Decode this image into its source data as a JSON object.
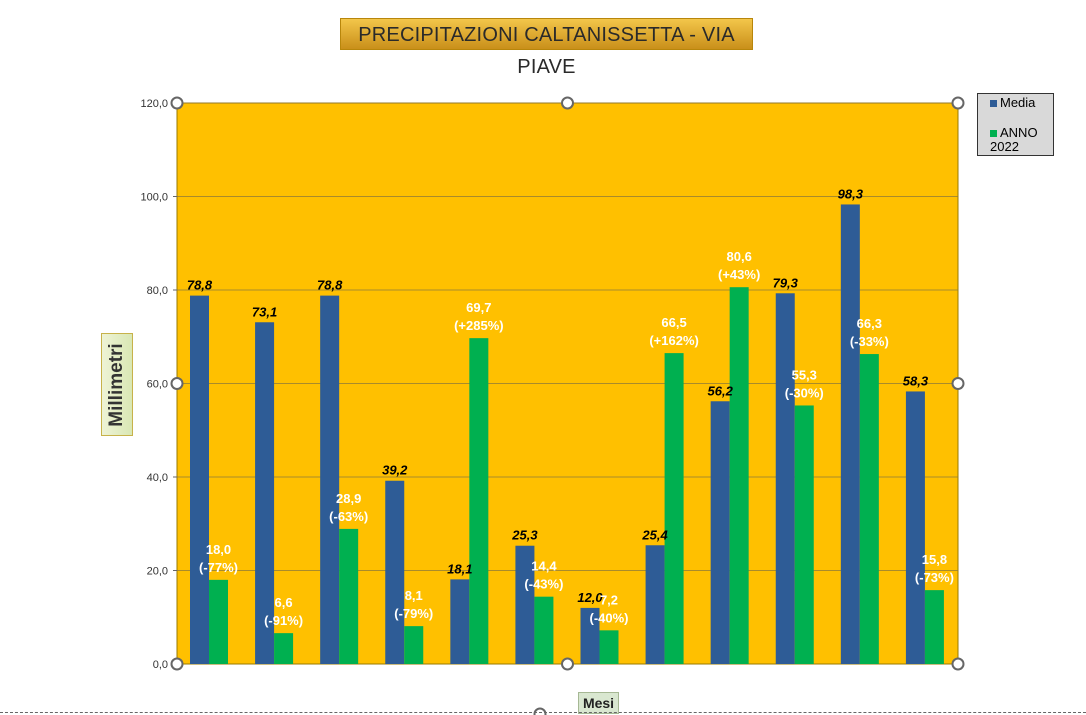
{
  "chart_data": {
    "type": "bar",
    "title": "PRECIPITAZIONI CALTANISSETTA - VIA PIAVE",
    "ylabel": "Millimetri",
    "xlabel": "Mesi",
    "ylim": [
      0,
      120
    ],
    "yticks": [
      "0,0",
      "20,0",
      "40,0",
      "60,0",
      "80,0",
      "100,0",
      "120,0"
    ],
    "grid": true,
    "legend_position": "top-right",
    "series": [
      {
        "name": "Media",
        "color": "#2e5c96",
        "values": [
          78.8,
          73.1,
          78.8,
          39.2,
          18.1,
          25.3,
          12.0,
          25.4,
          56.2,
          79.3,
          98.3,
          58.3
        ],
        "labels": [
          "78,8",
          "73,1",
          "78,8",
          "39,2",
          "18,1",
          "25,3",
          "12,0",
          "25,4",
          "56,2",
          "79,3",
          "98,3",
          "58,3"
        ]
      },
      {
        "name": "ANNO 2022",
        "color": "#00b050",
        "values": [
          18.0,
          6.6,
          28.9,
          8.1,
          69.7,
          14.4,
          7.2,
          66.5,
          80.6,
          55.3,
          66.3,
          15.8
        ],
        "labels": [
          "18,0",
          "6,6",
          "28,9",
          "8,1",
          "69,7",
          "14,4",
          "7,2",
          "66,5",
          "80,6",
          "55,3",
          "66,3",
          "15,8"
        ],
        "pct_labels": [
          "(-77%)",
          "(-91%)",
          "(-63%)",
          "(-79%)",
          "(+285%)",
          "(-43%)",
          "(-40%)",
          "(+162%)",
          "(+43%)",
          "(-30%)",
          "(-33%)",
          "(-73%)"
        ]
      }
    ],
    "plot_bg": "#ffc000"
  }
}
